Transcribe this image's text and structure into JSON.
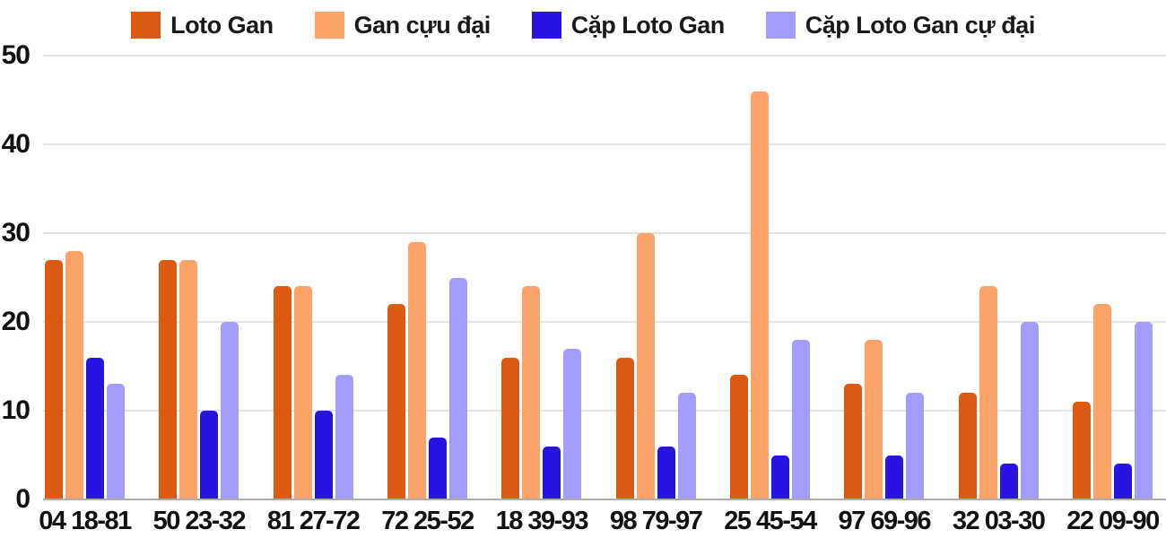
{
  "chart_data": {
    "type": "bar",
    "title": "",
    "xlabel": "",
    "ylabel": "",
    "ylim": [
      0,
      50
    ],
    "y_ticks": [
      0,
      10,
      20,
      30,
      40,
      50
    ],
    "grid": true,
    "legend_position": "top",
    "categories": [
      "04 18-81",
      "50 23-32",
      "81 27-72",
      "72 25-52",
      "18 39-93",
      "98 79-97",
      "25 45-54",
      "97 69-96",
      "32 03-30",
      "22 09-90"
    ],
    "series": [
      {
        "name": "Loto Gan",
        "color": "#DC5A12",
        "values": [
          27,
          27,
          24,
          22,
          16,
          16,
          14,
          13,
          12,
          11
        ]
      },
      {
        "name": "Gan cựu đại",
        "color": "#FCA369",
        "values": [
          28,
          27,
          24,
          29,
          24,
          30,
          46,
          18,
          24,
          22
        ]
      },
      {
        "name": "Cặp Loto Gan",
        "color": "#2814E0",
        "values": [
          16,
          10,
          10,
          7,
          6,
          6,
          5,
          5,
          4,
          4
        ]
      },
      {
        "name": "Cặp Loto Gan cự đại",
        "color": "#A49CFA",
        "values": [
          13,
          20,
          14,
          25,
          17,
          12,
          18,
          12,
          20,
          20
        ]
      }
    ]
  },
  "colors": {
    "gridline": "#E5E5E5",
    "axis_baseline": "#ACACAC",
    "text": "#111111",
    "background": "#FFFFFF"
  }
}
